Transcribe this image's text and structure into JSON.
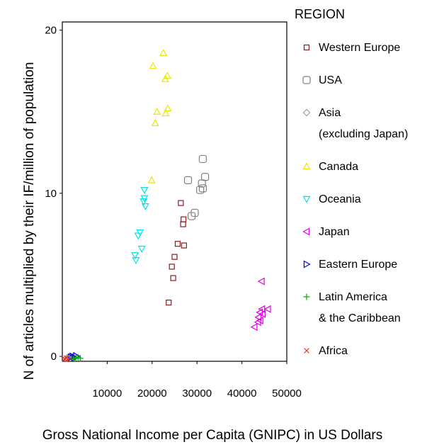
{
  "chart_data": {
    "type": "scatter",
    "xlabel": "Gross National Income per Capita (GNIPC) in US Dollars",
    "ylabel": "N of articles multiplied by their IF/million of population",
    "xlim": [
      0,
      50000
    ],
    "ylim": [
      -0.3,
      20.5
    ],
    "x_ticks": [
      10000,
      20000,
      30000,
      40000,
      50000
    ],
    "y_ticks": [
      0,
      10,
      20
    ],
    "x_tick_labels": [
      "10000",
      "20000",
      "30000",
      "40000",
      "50000"
    ],
    "y_tick_labels": [
      "0",
      "10",
      "20"
    ],
    "legend": {
      "title": "REGION",
      "placement": "right"
    },
    "series": [
      {
        "name": "Western Europe",
        "lines": [
          "Western Europe"
        ],
        "marker": "square",
        "color": "#8B1A1A",
        "points": [
          [
            23700,
            3.3
          ],
          [
            24700,
            4.8
          ],
          [
            24400,
            5.5
          ],
          [
            25000,
            6.1
          ],
          [
            25700,
            6.9
          ],
          [
            27100,
            6.8
          ],
          [
            26900,
            8.1
          ],
          [
            27000,
            8.4
          ],
          [
            26400,
            9.4
          ]
        ]
      },
      {
        "name": "USA",
        "lines": [
          "USA"
        ],
        "marker": "square-open",
        "color": "#808080",
        "points": [
          [
            28000,
            10.8
          ],
          [
            28800,
            8.6
          ],
          [
            29500,
            8.8
          ],
          [
            30700,
            10.2
          ],
          [
            31300,
            10.3
          ],
          [
            31100,
            10.6
          ],
          [
            31800,
            11.0
          ],
          [
            31300,
            12.1
          ]
        ]
      },
      {
        "name": "Asia (excluding Japan)",
        "lines": [
          "Asia",
          "(excluding Japan)"
        ],
        "marker": "diamond",
        "color": "#A0A0A0",
        "points": [
          [
            1000,
            -0.1
          ],
          [
            1600,
            0.0
          ],
          [
            2100,
            -0.05
          ],
          [
            2600,
            0.05
          ]
        ]
      },
      {
        "name": "Canada",
        "lines": [
          "Canada"
        ],
        "marker": "triangle-up",
        "color": "#E8E800",
        "points": [
          [
            19900,
            10.8
          ],
          [
            20200,
            17.8
          ],
          [
            20700,
            14.3
          ],
          [
            21100,
            15.0
          ],
          [
            22500,
            18.6
          ],
          [
            22900,
            17.0
          ],
          [
            23400,
            17.2
          ],
          [
            23000,
            14.9
          ],
          [
            23500,
            15.2
          ]
        ]
      },
      {
        "name": "Oceania",
        "lines": [
          "Oceania"
        ],
        "marker": "triangle-down",
        "color": "#00E5E5",
        "points": [
          [
            16200,
            6.2
          ],
          [
            16400,
            5.9
          ],
          [
            16900,
            7.4
          ],
          [
            17300,
            7.6
          ],
          [
            17700,
            6.6
          ],
          [
            18100,
            9.5
          ],
          [
            18300,
            9.7
          ],
          [
            18500,
            9.2
          ],
          [
            18300,
            10.2
          ]
        ]
      },
      {
        "name": "Japan",
        "lines": [
          "Japan"
        ],
        "marker": "triangle-left",
        "color": "#E000E0",
        "points": [
          [
            42800,
            1.8
          ],
          [
            43600,
            2.1
          ],
          [
            43700,
            2.4
          ],
          [
            44100,
            2.2
          ],
          [
            44000,
            2.7
          ],
          [
            44600,
            2.6
          ],
          [
            44500,
            2.9
          ],
          [
            45800,
            2.9
          ],
          [
            44400,
            4.6
          ]
        ]
      },
      {
        "name": "Eastern Europe",
        "lines": [
          "Eastern Europe"
        ],
        "marker": "triangle-right",
        "color": "#0000E0",
        "points": [
          [
            1900,
            -0.05
          ],
          [
            2300,
            0.0
          ],
          [
            2700,
            -0.1
          ],
          [
            3100,
            0.02
          ]
        ]
      },
      {
        "name": "Latin America & the Caribbean",
        "lines": [
          "Latin America",
          "& the Caribbean"
        ],
        "marker": "plus",
        "color": "#00B000",
        "points": [
          [
            2500,
            -0.15
          ],
          [
            3000,
            -0.1
          ],
          [
            3500,
            -0.05
          ],
          [
            4000,
            -0.12
          ]
        ]
      },
      {
        "name": "Africa",
        "lines": [
          "Africa"
        ],
        "marker": "cross",
        "color": "#E03020",
        "points": [
          [
            500,
            -0.15
          ],
          [
            900,
            -0.1
          ],
          [
            1200,
            -0.18
          ]
        ]
      }
    ]
  }
}
